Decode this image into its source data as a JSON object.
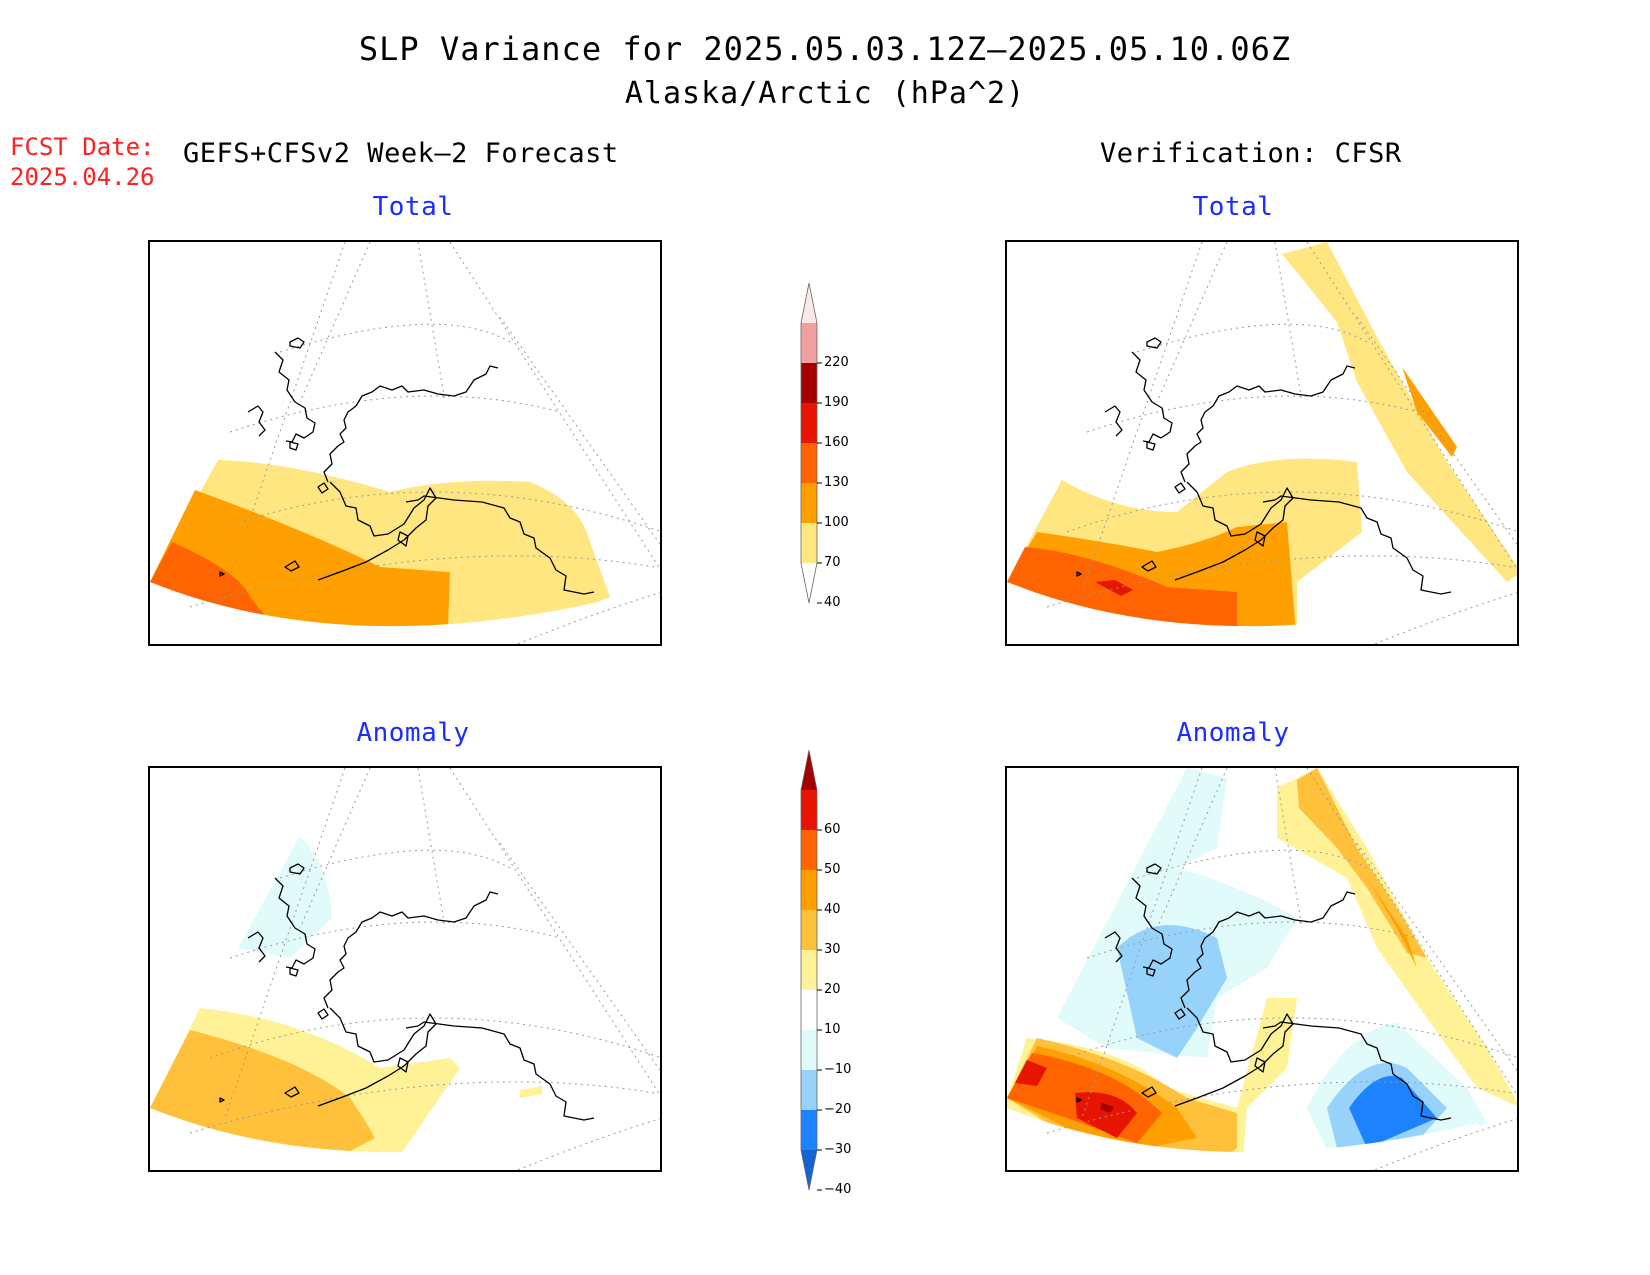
{
  "title": {
    "line1": "SLP Variance for 2025.05.03.12Z–2025.05.10.06Z",
    "line2": "Alaska/Arctic (hPa^2)"
  },
  "fcst": {
    "label": "FCST Date:",
    "date": "2025.04.26"
  },
  "headers": {
    "left": "GEFS+CFSv2 Week–2 Forecast",
    "right": "Verification: CFSR"
  },
  "panels": [
    {
      "id": "forecast-total",
      "subtitle": "Total"
    },
    {
      "id": "verify-total",
      "subtitle": "Total"
    },
    {
      "id": "forecast-anomaly",
      "subtitle": "Anomaly"
    },
    {
      "id": "verify-anomaly",
      "subtitle": "Anomaly"
    }
  ],
  "colorbars": {
    "total": {
      "labels": [
        "220",
        "190",
        "160",
        "130",
        "100",
        "70",
        "40"
      ],
      "levels": [
        40,
        70,
        100,
        130,
        160,
        190,
        220
      ],
      "colors": [
        "#ffe680",
        "#ffa000",
        "#ff6400",
        "#e61400",
        "#a50000",
        "#f0a0a0",
        "#fde8e8"
      ]
    },
    "anomaly": {
      "labels": [
        "60",
        "50",
        "40",
        "30",
        "20",
        "10",
        "−10",
        "−20",
        "−30",
        "−40"
      ],
      "levels": [
        -40,
        -30,
        -20,
        -10,
        10,
        20,
        30,
        40,
        50,
        60
      ],
      "colors": [
        "#1464d2",
        "#1e82ff",
        "#96d2fa",
        "#e1fafa",
        "#ffffff",
        "#fff296",
        "#ffc03c",
        "#ffa000",
        "#ff6400",
        "#e61400",
        "#a50000"
      ]
    }
  },
  "shading_colors": {
    "total_40_70": "#ffe680",
    "total_70_100": "#ffa000",
    "total_100_130": "#ff6400",
    "total_130_160": "#e61400",
    "anom_10_20": "#fff296",
    "anom_20_30": "#ffc03c",
    "anom_30_40": "#ffa000",
    "anom_40_50": "#ff6400",
    "anom_50_60": "#e61400",
    "anom_gt60": "#a50000",
    "anom_m10_m20": "#e1fafa",
    "anom_m20_m30": "#96d2fa",
    "anom_m30_m40": "#1e82ff",
    "anom_lt_m40": "#1464d2"
  }
}
